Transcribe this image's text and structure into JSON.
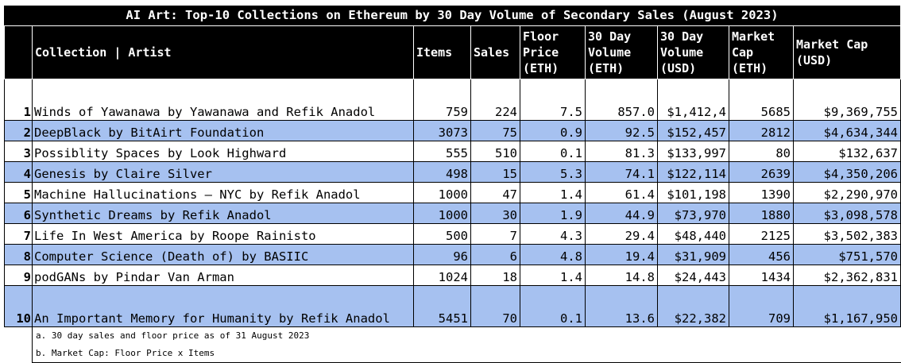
{
  "title": "AI Art: Top-10 Collections on Ethereum by 30 Day Volume of Secondary Sales (August 2023)",
  "headers": {
    "collection": "Collection | Artist",
    "items": "Items",
    "sales": "Sales",
    "floor": [
      "Floor",
      "Price",
      "(ETH)"
    ],
    "vol_eth": [
      "30 Day",
      "Volume",
      "(ETH)"
    ],
    "vol_usd": [
      "30 Day",
      "Volume",
      "(USD)"
    ],
    "mcap_eth": [
      "Market",
      "Cap",
      "(ETH)"
    ],
    "mcap_usd": [
      "Market Cap",
      "(USD)"
    ]
  },
  "rows": [
    {
      "rank": "1",
      "name": "Winds of Yawanawa by Yawanawa and Refik Anadol",
      "items": "759",
      "sales": "224",
      "floor": "7.5",
      "vol_eth": "857.0",
      "vol_usd": "$1,412,4",
      "mcap_eth": "5685",
      "mcap_usd": "$9,369,755"
    },
    {
      "rank": "2",
      "name": "DeepBlack by BitAirt Foundation",
      "items": "3073",
      "sales": "75",
      "floor": "0.9",
      "vol_eth": "92.5",
      "vol_usd": "$152,457",
      "mcap_eth": "2812",
      "mcap_usd": "$4,634,344"
    },
    {
      "rank": "3",
      "name": "Possiblity Spaces by Look Highward",
      "items": "555",
      "sales": "510",
      "floor": "0.1",
      "vol_eth": "81.3",
      "vol_usd": "$133,997",
      "mcap_eth": "80",
      "mcap_usd": "$132,637"
    },
    {
      "rank": "4",
      "name": "Genesis by Claire Silver",
      "items": "498",
      "sales": "15",
      "floor": "5.3",
      "vol_eth": "74.1",
      "vol_usd": "$122,114",
      "mcap_eth": "2639",
      "mcap_usd": "$4,350,206"
    },
    {
      "rank": "5",
      "name": "Machine Hallucinations – NYC by Refik Anadol",
      "items": "1000",
      "sales": "47",
      "floor": "1.4",
      "vol_eth": "61.4",
      "vol_usd": "$101,198",
      "mcap_eth": "1390",
      "mcap_usd": "$2,290,970"
    },
    {
      "rank": "6",
      "name": "Synthetic Dreams by Refik Anadol",
      "items": "1000",
      "sales": "30",
      "floor": "1.9",
      "vol_eth": "44.9",
      "vol_usd": "$73,970",
      "mcap_eth": "1880",
      "mcap_usd": "$3,098,578"
    },
    {
      "rank": "7",
      "name": "Life In West America by Roope Rainisto",
      "items": "500",
      "sales": "7",
      "floor": "4.3",
      "vol_eth": "29.4",
      "vol_usd": "$48,440",
      "mcap_eth": "2125",
      "mcap_usd": "$3,502,383"
    },
    {
      "rank": "8",
      "name": "Computer Science (Death of) by BASIIC",
      "items": "96",
      "sales": "6",
      "floor": "4.8",
      "vol_eth": "19.4",
      "vol_usd": "$31,909",
      "mcap_eth": "456",
      "mcap_usd": "$751,570"
    },
    {
      "rank": "9",
      "name": "podGANs by Pindar Van Arman",
      "items": "1024",
      "sales": "18",
      "floor": "1.4",
      "vol_eth": "14.8",
      "vol_usd": "$24,443",
      "mcap_eth": "1434",
      "mcap_usd": "$2,362,831"
    },
    {
      "rank": "10",
      "name": "An Important Memory for Humanity by Refik Anadol",
      "items": "5451",
      "sales": "70",
      "floor": "0.1",
      "vol_eth": "13.6",
      "vol_usd": "$22,382",
      "mcap_eth": "709",
      "mcap_usd": "$1,167,950"
    }
  ],
  "notes": [
    "a. 30 day sales and floor price as of 31 August 2023",
    "b. Market Cap: Floor Price x Items"
  ],
  "colors": {
    "header_bg": "#000000",
    "alt_row": "#a6c1f0",
    "plain_row": "#ffffff"
  }
}
